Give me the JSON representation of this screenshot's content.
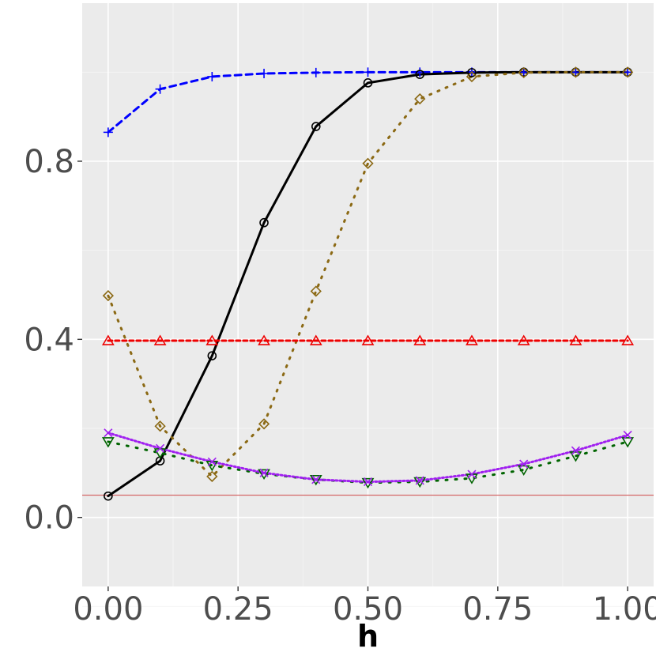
{
  "chart_data": {
    "type": "line",
    "title": "",
    "xlabel": "h",
    "ylabel": "",
    "xlim": [
      -0.05,
      1.05
    ],
    "ylim": [
      -0.155,
      1.155
    ],
    "x_ticks": [
      0.0,
      0.25,
      0.5,
      0.75,
      1.0
    ],
    "x_tick_labels": [
      "0.00",
      "0.25",
      "0.50",
      "0.75",
      "1.00"
    ],
    "y_ticks": [
      0.0,
      0.4,
      0.8
    ],
    "y_tick_labels": [
      "0.0",
      "0.4",
      "0.8"
    ],
    "grid": true,
    "legend": "none",
    "reference_line": {
      "y": 0.05,
      "color": "#d46a6a"
    },
    "x": [
      0.0,
      0.1,
      0.2,
      0.3,
      0.4,
      0.5,
      0.6,
      0.7,
      0.8,
      0.9,
      1.0
    ],
    "series": [
      {
        "color": "#0000ff",
        "dash": "8,6",
        "marker": "plus",
        "values": [
          0.865,
          0.962,
          0.99,
          0.997,
          0.999,
          1.0,
          1.0,
          1.0,
          1.0,
          1.0,
          1.0
        ]
      },
      {
        "color": "#000000",
        "dash": "",
        "marker": "circle",
        "values": [
          0.048,
          0.127,
          0.363,
          0.662,
          0.878,
          0.976,
          0.995,
          0.999,
          1.0,
          1.0,
          1.0
        ]
      },
      {
        "color": "#8b6914",
        "dash": "2,9",
        "marker": "diamond",
        "values": [
          0.498,
          0.205,
          0.092,
          0.21,
          0.508,
          0.795,
          0.94,
          0.99,
          0.999,
          1.0,
          1.0
        ]
      },
      {
        "color": "#ee0000",
        "dash": "5,4",
        "marker": "triangle-up",
        "values": [
          0.397,
          0.397,
          0.397,
          0.397,
          0.397,
          0.397,
          0.397,
          0.397,
          0.397,
          0.397,
          0.397
        ]
      },
      {
        "color": "#006400",
        "dash": "2,10",
        "marker": "triangle-down",
        "values": [
          0.17,
          0.145,
          0.117,
          0.098,
          0.085,
          0.078,
          0.08,
          0.088,
          0.107,
          0.138,
          0.17
        ]
      },
      {
        "color": "#a020f0",
        "dash": "2,3",
        "marker": "cross",
        "values": [
          0.19,
          0.155,
          0.125,
          0.1,
          0.085,
          0.08,
          0.083,
          0.097,
          0.12,
          0.15,
          0.185
        ]
      }
    ]
  }
}
